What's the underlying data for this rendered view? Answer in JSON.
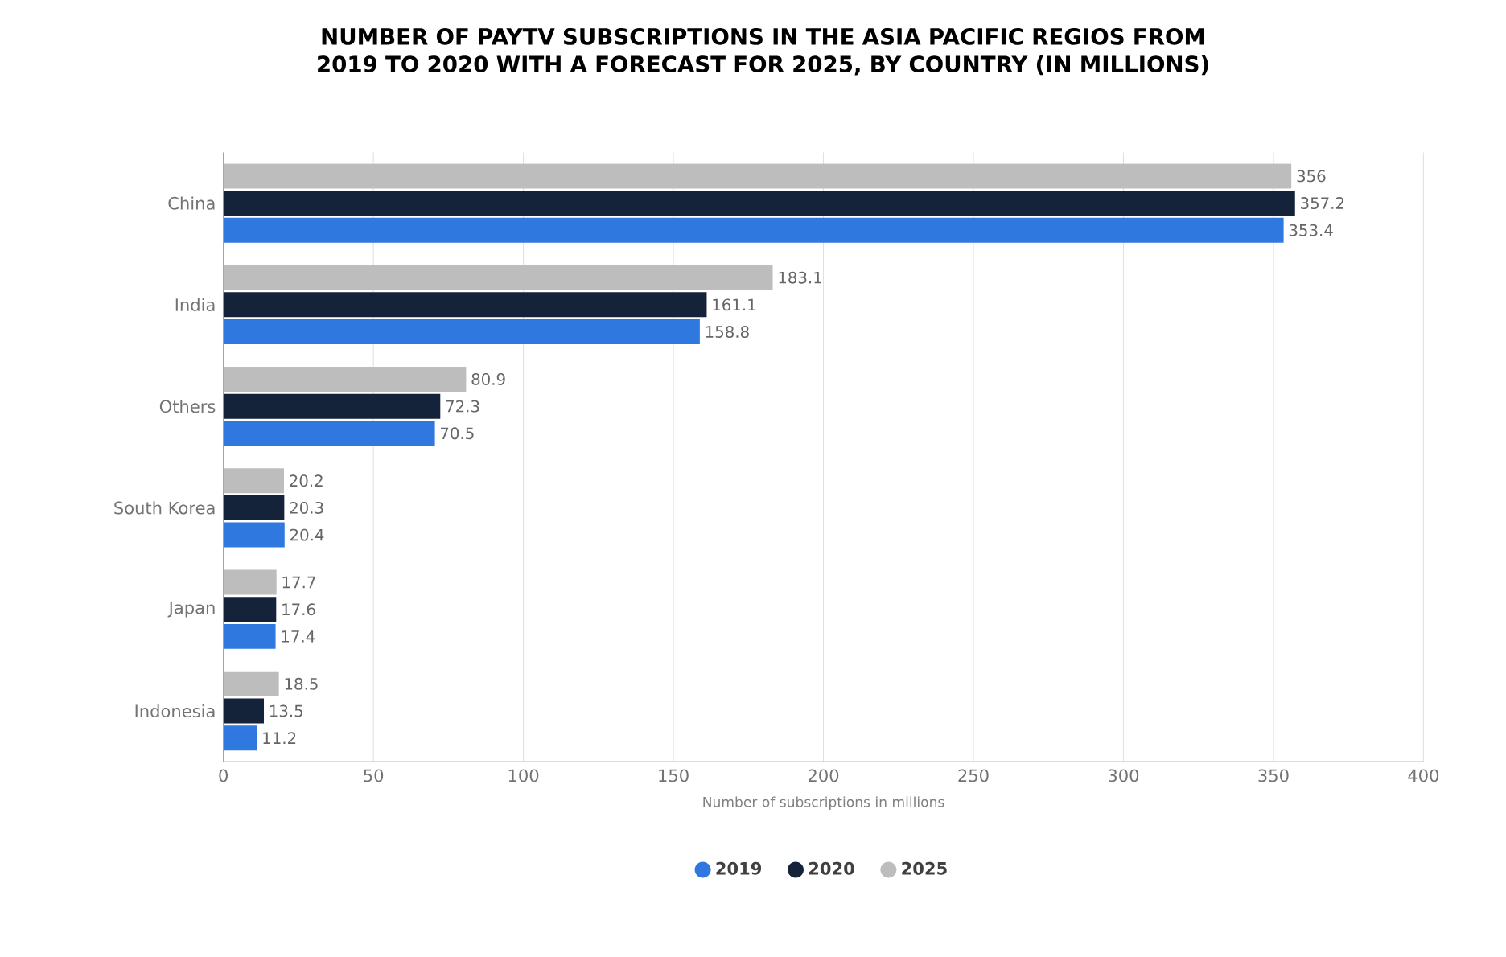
{
  "chart_data": {
    "type": "bar",
    "orientation": "horizontal",
    "title": "NUMBER OF PAYTV SUBSCRIPTIONS IN THE ASIA PACIFIC REGIOS FROM 2019 TO 2020 WITH A FORECAST FOR 2025, BY COUNTRY (IN MILLIONS)",
    "xlabel": "Number of subscriptions in millions",
    "categories": [
      "China",
      "India",
      "Others",
      "South Korea",
      "Japan",
      "Indonesia"
    ],
    "series": [
      {
        "name": "2019",
        "color": "#2f78e0",
        "values": [
          353.4,
          158.8,
          70.5,
          20.4,
          17.4,
          11.2
        ]
      },
      {
        "name": "2020",
        "color": "#15233a",
        "values": [
          357.2,
          161.1,
          72.3,
          20.3,
          17.6,
          13.5
        ]
      },
      {
        "name": "2025",
        "color": "#bdbdbd",
        "values": [
          356,
          183.1,
          80.9,
          20.2,
          17.7,
          18.5
        ]
      }
    ],
    "xlim": [
      0,
      400
    ],
    "xticks": [
      0,
      50,
      100,
      150,
      200,
      250,
      300,
      350,
      400
    ],
    "grid": "x",
    "legend": "bottom",
    "data_labels": true
  }
}
